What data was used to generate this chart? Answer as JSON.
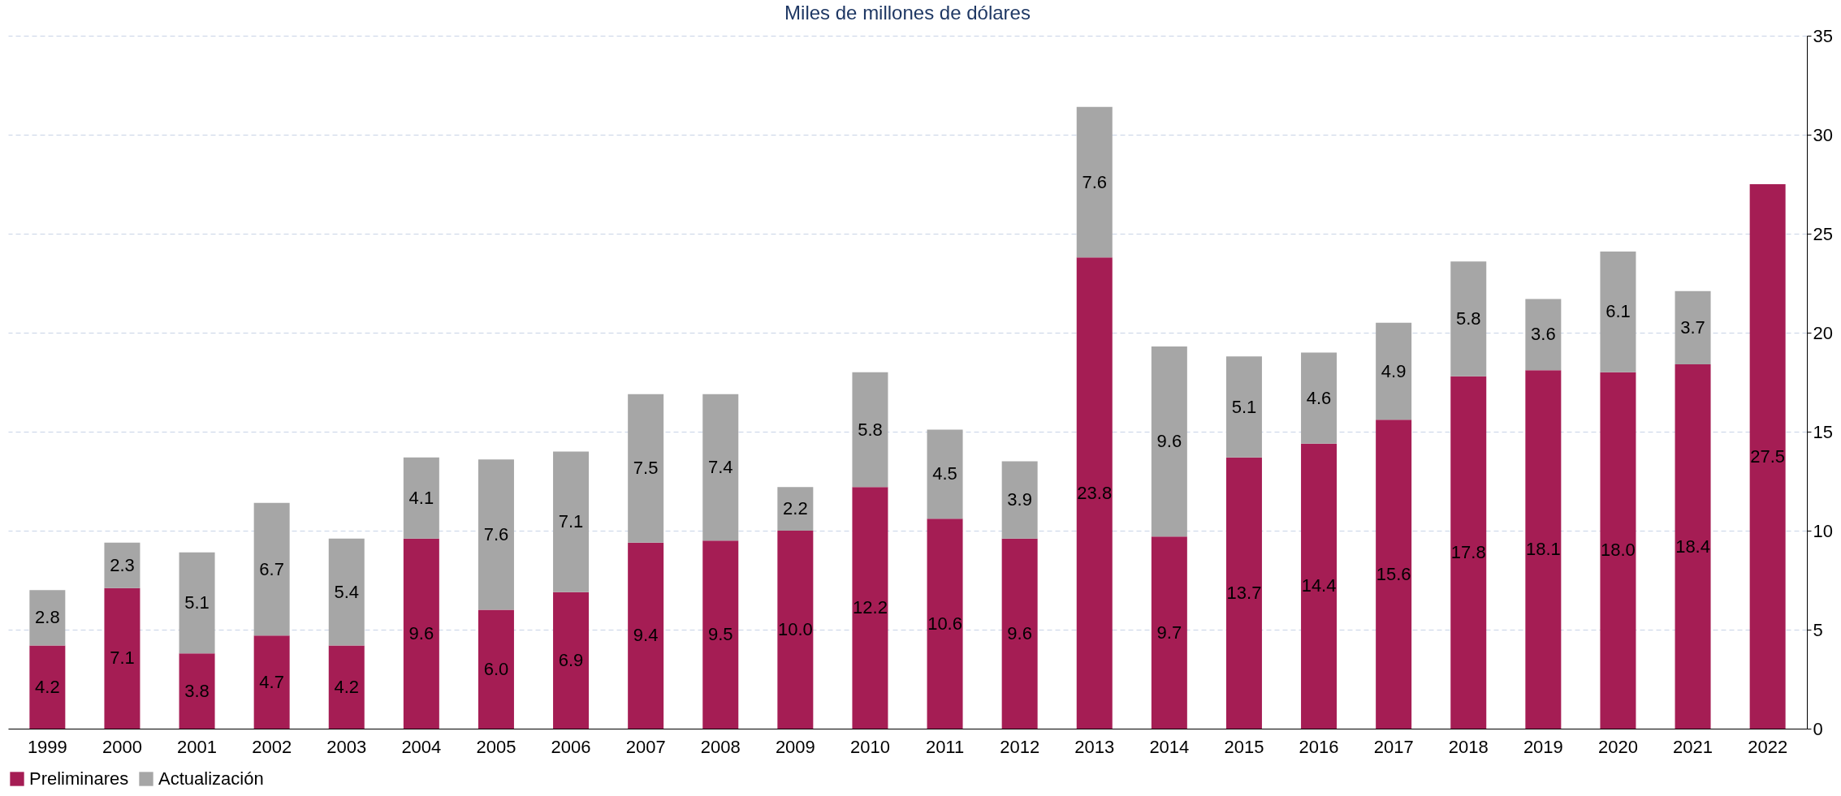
{
  "chart_data": {
    "type": "bar",
    "title": "Miles de millones de dólares",
    "stacked": true,
    "categories": [
      "1999",
      "2000",
      "2001",
      "2002",
      "2003",
      "2004",
      "2005",
      "2006",
      "2007",
      "2008",
      "2009",
      "2010",
      "2011",
      "2012",
      "2013",
      "2014",
      "2015",
      "2016",
      "2017",
      "2018",
      "2019",
      "2020",
      "2021",
      "2022"
    ],
    "series": [
      {
        "name": "Preliminares",
        "color": "#a51d54",
        "values": [
          4.2,
          7.1,
          3.8,
          4.7,
          4.2,
          9.6,
          6.0,
          6.9,
          9.4,
          9.5,
          10.0,
          12.2,
          10.6,
          9.6,
          23.8,
          9.7,
          13.7,
          14.4,
          15.6,
          17.8,
          18.1,
          18.0,
          18.4,
          27.5
        ],
        "value_labels": [
          "4.2",
          "7.1",
          "3.8",
          "4.7",
          "4.2",
          "9.6",
          "6.0",
          "6.9",
          "9.4",
          "9.5",
          "10.0",
          "12.2",
          "10.6",
          "9.6",
          "23.8",
          "9.7",
          "13.7",
          "14.4",
          "15.6",
          "17.8",
          "18.1",
          "18.0",
          "18.4",
          "27.5"
        ]
      },
      {
        "name": "Actualización",
        "color": "#a6a6a6",
        "values": [
          2.8,
          2.3,
          5.1,
          6.7,
          5.4,
          4.1,
          7.6,
          7.1,
          7.5,
          7.4,
          2.2,
          5.8,
          4.5,
          3.9,
          7.6,
          9.6,
          5.1,
          4.6,
          4.9,
          5.8,
          3.6,
          6.1,
          3.7,
          null
        ],
        "value_labels": [
          "2.8",
          "2.3",
          "5.1",
          "6.7",
          "5.4",
          "4.1",
          "7.6",
          "7.1",
          "7.5",
          "7.4",
          "2.2",
          "5.8",
          "4.5",
          "3.9",
          "7.6",
          "9.6",
          "5.1",
          "4.6",
          "4.9",
          "5.8",
          "3.6",
          "6.1",
          "3.7",
          null
        ]
      }
    ],
    "ylim": [
      0,
      35
    ],
    "yticks": [
      0,
      5,
      10,
      15,
      20,
      25,
      30,
      35
    ],
    "grid": "y",
    "legend": "bottom"
  }
}
